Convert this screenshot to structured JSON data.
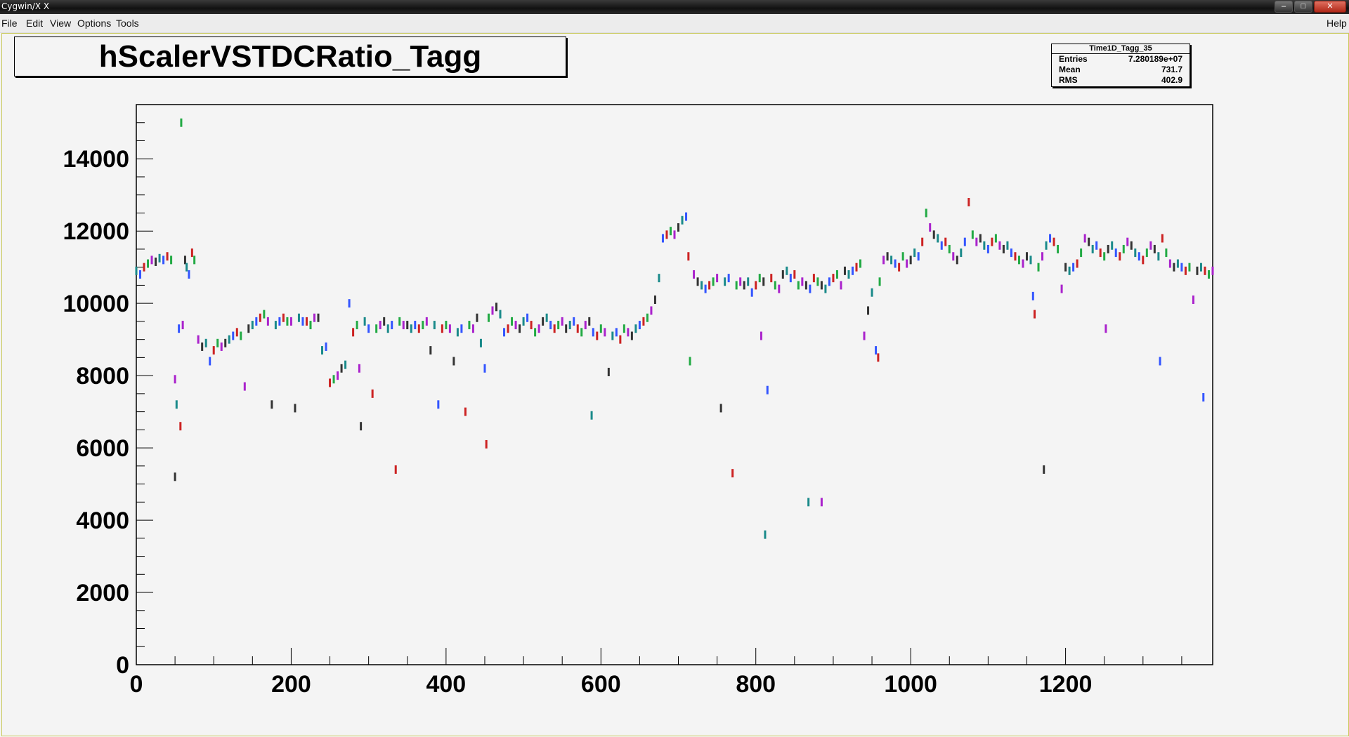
{
  "window": {
    "title": "Cygwin/X X"
  },
  "menu": {
    "file": "File",
    "edit": "Edit",
    "view": "View",
    "options": "Options",
    "tools": "Tools",
    "help": "Help"
  },
  "plot": {
    "title": "hScalerVSTDCRatio_Tagg"
  },
  "stats": {
    "name": "Time1D_Tagg_35",
    "rows": [
      {
        "label": "Entries",
        "value": "7.280189e+07"
      },
      {
        "label": "Mean",
        "value": "731.7"
      },
      {
        "label": "RMS",
        "value": "402.9"
      }
    ]
  },
  "chart_data": {
    "type": "scatter",
    "title": "hScalerVSTDCRatio_Tagg",
    "xlabel": "",
    "ylabel": "",
    "xlim": [
      0,
      1390
    ],
    "ylim": [
      0,
      15500
    ],
    "xticks": [
      "0",
      "200",
      "400",
      "600",
      "800",
      "1000",
      "1200"
    ],
    "yticks": [
      "0",
      "2000",
      "4000",
      "6000",
      "8000",
      "10000",
      "12000",
      "14000"
    ],
    "grid": false,
    "series": [
      {
        "points": [
          [
            0,
            10900
          ],
          [
            5,
            10800
          ],
          [
            10,
            11000
          ],
          [
            15,
            11100
          ],
          [
            20,
            11200
          ],
          [
            25,
            11150
          ],
          [
            30,
            11250
          ],
          [
            35,
            11200
          ],
          [
            40,
            11300
          ],
          [
            45,
            11200
          ],
          [
            50,
            7900
          ],
          [
            50,
            5200
          ],
          [
            52,
            7200
          ],
          [
            55,
            9300
          ],
          [
            57,
            6600
          ],
          [
            58,
            15000
          ],
          [
            60,
            9400
          ],
          [
            63,
            11200
          ],
          [
            65,
            11000
          ],
          [
            68,
            10800
          ],
          [
            72,
            11400
          ],
          [
            75,
            11200
          ],
          [
            80,
            9000
          ],
          [
            85,
            8800
          ],
          [
            90,
            8900
          ],
          [
            95,
            8400
          ],
          [
            100,
            8700
          ],
          [
            105,
            8900
          ],
          [
            110,
            8800
          ],
          [
            115,
            8900
          ],
          [
            120,
            9000
          ],
          [
            125,
            9100
          ],
          [
            130,
            9200
          ],
          [
            135,
            9100
          ],
          [
            140,
            7700
          ],
          [
            145,
            9300
          ],
          [
            150,
            9400
          ],
          [
            155,
            9500
          ],
          [
            160,
            9600
          ],
          [
            165,
            9700
          ],
          [
            170,
            9500
          ],
          [
            175,
            7200
          ],
          [
            180,
            9400
          ],
          [
            185,
            9500
          ],
          [
            190,
            9600
          ],
          [
            195,
            9500
          ],
          [
            200,
            9500
          ],
          [
            205,
            7100
          ],
          [
            210,
            9600
          ],
          [
            215,
            9500
          ],
          [
            220,
            9500
          ],
          [
            225,
            9400
          ],
          [
            230,
            9600
          ],
          [
            235,
            9600
          ],
          [
            240,
            8700
          ],
          [
            245,
            8800
          ],
          [
            250,
            7800
          ],
          [
            255,
            7900
          ],
          [
            260,
            8000
          ],
          [
            265,
            8200
          ],
          [
            270,
            8300
          ],
          [
            275,
            10000
          ],
          [
            280,
            9200
          ],
          [
            285,
            9400
          ],
          [
            288,
            8200
          ],
          [
            290,
            6600
          ],
          [
            295,
            9500
          ],
          [
            300,
            9300
          ],
          [
            305,
            7500
          ],
          [
            310,
            9300
          ],
          [
            315,
            9400
          ],
          [
            320,
            9500
          ],
          [
            325,
            9300
          ],
          [
            330,
            9400
          ],
          [
            335,
            5400
          ],
          [
            340,
            9500
          ],
          [
            345,
            9400
          ],
          [
            350,
            9400
          ],
          [
            355,
            9300
          ],
          [
            360,
            9400
          ],
          [
            365,
            9300
          ],
          [
            370,
            9400
          ],
          [
            375,
            9500
          ],
          [
            380,
            8700
          ],
          [
            385,
            9400
          ],
          [
            390,
            7200
          ],
          [
            395,
            9300
          ],
          [
            400,
            9400
          ],
          [
            405,
            9300
          ],
          [
            410,
            8400
          ],
          [
            415,
            9200
          ],
          [
            420,
            9300
          ],
          [
            425,
            7000
          ],
          [
            430,
            9400
          ],
          [
            435,
            9300
          ],
          [
            440,
            9600
          ],
          [
            445,
            8900
          ],
          [
            450,
            8200
          ],
          [
            452,
            6100
          ],
          [
            455,
            9600
          ],
          [
            460,
            9800
          ],
          [
            465,
            9900
          ],
          [
            470,
            9700
          ],
          [
            475,
            9200
          ],
          [
            480,
            9300
          ],
          [
            485,
            9500
          ],
          [
            490,
            9400
          ],
          [
            495,
            9300
          ],
          [
            500,
            9500
          ],
          [
            505,
            9600
          ],
          [
            510,
            9400
          ],
          [
            515,
            9200
          ],
          [
            520,
            9300
          ],
          [
            525,
            9500
          ],
          [
            530,
            9600
          ],
          [
            535,
            9400
          ],
          [
            540,
            9300
          ],
          [
            545,
            9400
          ],
          [
            550,
            9500
          ],
          [
            555,
            9300
          ],
          [
            560,
            9400
          ],
          [
            565,
            9500
          ],
          [
            570,
            9300
          ],
          [
            575,
            9200
          ],
          [
            580,
            9400
          ],
          [
            585,
            9500
          ],
          [
            588,
            6900
          ],
          [
            590,
            9200
          ],
          [
            595,
            9100
          ],
          [
            600,
            9300
          ],
          [
            605,
            9200
          ],
          [
            610,
            8100
          ],
          [
            615,
            9100
          ],
          [
            620,
            9200
          ],
          [
            625,
            9000
          ],
          [
            630,
            9300
          ],
          [
            635,
            9200
          ],
          [
            640,
            9100
          ],
          [
            645,
            9300
          ],
          [
            650,
            9400
          ],
          [
            655,
            9500
          ],
          [
            660,
            9600
          ],
          [
            665,
            9800
          ],
          [
            670,
            10100
          ],
          [
            675,
            10700
          ],
          [
            680,
            11800
          ],
          [
            685,
            11900
          ],
          [
            690,
            12000
          ],
          [
            695,
            11900
          ],
          [
            700,
            12100
          ],
          [
            705,
            12300
          ],
          [
            710,
            12400
          ],
          [
            713,
            11300
          ],
          [
            715,
            8400
          ],
          [
            720,
            10800
          ],
          [
            725,
            10600
          ],
          [
            730,
            10500
          ],
          [
            735,
            10400
          ],
          [
            740,
            10500
          ],
          [
            745,
            10600
          ],
          [
            750,
            10700
          ],
          [
            755,
            7100
          ],
          [
            760,
            10600
          ],
          [
            765,
            10700
          ],
          [
            770,
            5300
          ],
          [
            775,
            10500
          ],
          [
            780,
            10600
          ],
          [
            785,
            10500
          ],
          [
            790,
            10600
          ],
          [
            795,
            10300
          ],
          [
            800,
            10500
          ],
          [
            805,
            10700
          ],
          [
            807,
            9100
          ],
          [
            810,
            10600
          ],
          [
            812,
            3600
          ],
          [
            815,
            7600
          ],
          [
            820,
            10700
          ],
          [
            825,
            10500
          ],
          [
            830,
            10400
          ],
          [
            835,
            10800
          ],
          [
            840,
            10900
          ],
          [
            845,
            10700
          ],
          [
            850,
            10800
          ],
          [
            855,
            10500
          ],
          [
            860,
            10600
          ],
          [
            865,
            10500
          ],
          [
            868,
            4500
          ],
          [
            870,
            10400
          ],
          [
            875,
            10700
          ],
          [
            880,
            10600
          ],
          [
            885,
            4500
          ],
          [
            885,
            10500
          ],
          [
            890,
            10400
          ],
          [
            895,
            10600
          ],
          [
            900,
            10700
          ],
          [
            905,
            10800
          ],
          [
            910,
            10500
          ],
          [
            915,
            10900
          ],
          [
            920,
            10800
          ],
          [
            925,
            10900
          ],
          [
            930,
            11000
          ],
          [
            935,
            11100
          ],
          [
            940,
            9100
          ],
          [
            945,
            9800
          ],
          [
            950,
            10300
          ],
          [
            955,
            8700
          ],
          [
            958,
            8500
          ],
          [
            960,
            10600
          ],
          [
            965,
            11200
          ],
          [
            970,
            11300
          ],
          [
            975,
            11200
          ],
          [
            980,
            11100
          ],
          [
            985,
            11000
          ],
          [
            990,
            11300
          ],
          [
            995,
            11100
          ],
          [
            1000,
            11200
          ],
          [
            1005,
            11400
          ],
          [
            1010,
            11300
          ],
          [
            1015,
            11700
          ],
          [
            1020,
            12500
          ],
          [
            1025,
            12100
          ],
          [
            1030,
            11900
          ],
          [
            1035,
            11800
          ],
          [
            1040,
            11600
          ],
          [
            1045,
            11700
          ],
          [
            1050,
            11500
          ],
          [
            1055,
            11300
          ],
          [
            1060,
            11200
          ],
          [
            1065,
            11400
          ],
          [
            1070,
            11700
          ],
          [
            1075,
            12800
          ],
          [
            1080,
            11900
          ],
          [
            1085,
            11700
          ],
          [
            1090,
            11800
          ],
          [
            1095,
            11600
          ],
          [
            1100,
            11500
          ],
          [
            1105,
            11700
          ],
          [
            1110,
            11800
          ],
          [
            1115,
            11600
          ],
          [
            1120,
            11500
          ],
          [
            1125,
            11600
          ],
          [
            1130,
            11400
          ],
          [
            1135,
            11300
          ],
          [
            1140,
            11200
          ],
          [
            1145,
            11100
          ],
          [
            1150,
            11300
          ],
          [
            1155,
            11200
          ],
          [
            1158,
            10200
          ],
          [
            1160,
            9700
          ],
          [
            1165,
            11000
          ],
          [
            1170,
            11300
          ],
          [
            1172,
            5400
          ],
          [
            1175,
            11600
          ],
          [
            1180,
            11800
          ],
          [
            1185,
            11700
          ],
          [
            1190,
            11500
          ],
          [
            1195,
            10400
          ],
          [
            1200,
            11000
          ],
          [
            1205,
            10900
          ],
          [
            1210,
            11000
          ],
          [
            1215,
            11100
          ],
          [
            1220,
            11400
          ],
          [
            1225,
            11800
          ],
          [
            1230,
            11700
          ],
          [
            1235,
            11500
          ],
          [
            1240,
            11600
          ],
          [
            1245,
            11400
          ],
          [
            1250,
            11300
          ],
          [
            1252,
            9300
          ],
          [
            1255,
            11500
          ],
          [
            1260,
            11600
          ],
          [
            1265,
            11400
          ],
          [
            1270,
            11300
          ],
          [
            1275,
            11500
          ],
          [
            1280,
            11700
          ],
          [
            1285,
            11600
          ],
          [
            1290,
            11400
          ],
          [
            1295,
            11300
          ],
          [
            1300,
            11200
          ],
          [
            1305,
            11400
          ],
          [
            1310,
            11600
          ],
          [
            1315,
            11500
          ],
          [
            1320,
            11300
          ],
          [
            1322,
            8400
          ],
          [
            1325,
            11800
          ],
          [
            1330,
            11400
          ],
          [
            1335,
            11100
          ],
          [
            1340,
            11000
          ],
          [
            1345,
            11100
          ],
          [
            1350,
            11000
          ],
          [
            1355,
            10900
          ],
          [
            1360,
            11000
          ],
          [
            1365,
            10100
          ],
          [
            1370,
            10900
          ],
          [
            1375,
            11000
          ],
          [
            1378,
            7400
          ],
          [
            1380,
            10900
          ],
          [
            1385,
            10800
          ],
          [
            1390,
            10900
          ]
        ]
      }
    ]
  }
}
